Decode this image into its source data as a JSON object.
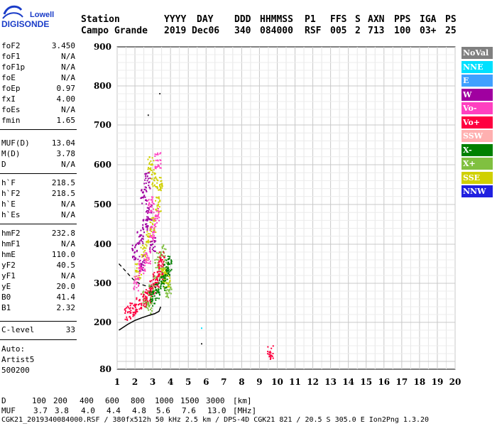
{
  "logo": {
    "line1": "Lowell",
    "line2": "DIGISONDE"
  },
  "header": {
    "row1": [
      "Station",
      "YYYY",
      "DAY",
      "DDD",
      "HHMMSS",
      "P1",
      "FFS",
      "S",
      "AXN",
      "PPS",
      "IGA",
      "PS"
    ],
    "row2": [
      "Campo Grande",
      "2019",
      "Dec06",
      "340",
      "084000",
      "RSF",
      "005",
      "2",
      "713",
      "100",
      "03+",
      "25"
    ]
  },
  "params": [
    {
      "label": "foF2",
      "value": "3.450"
    },
    {
      "label": "foF1",
      "value": "N/A"
    },
    {
      "label": "foF1p",
      "value": "N/A"
    },
    {
      "label": "foE",
      "value": "N/A"
    },
    {
      "label": "foEp",
      "value": "0.97"
    },
    {
      "label": "fxI",
      "value": "4.00"
    },
    {
      "label": "foEs",
      "value": "N/A"
    },
    {
      "label": "fmin",
      "value": "1.65"
    },
    {
      "label": "MUF(D)",
      "value": "13.04"
    },
    {
      "label": "M(D)",
      "value": "3.78"
    },
    {
      "label": "D",
      "value": "N/A"
    },
    {
      "label": "h`F",
      "value": "218.5"
    },
    {
      "label": "h`F2",
      "value": "218.5"
    },
    {
      "label": "h`E",
      "value": "N/A"
    },
    {
      "label": "h`Es",
      "value": "N/A"
    },
    {
      "label": "hmF2",
      "value": "232.8"
    },
    {
      "label": "hmF1",
      "value": "N/A"
    },
    {
      "label": "hmE",
      "value": "110.0"
    },
    {
      "label": "yF2",
      "value": "40.5"
    },
    {
      "label": "yF1",
      "value": "N/A"
    },
    {
      "label": "yE",
      "value": "20.0"
    },
    {
      "label": "B0",
      "value": "41.4"
    },
    {
      "label": "B1",
      "value": "2.32"
    },
    {
      "label": "C-level",
      "value": "33"
    }
  ],
  "auto": {
    "line1": "Auto:",
    "line2": "Artist5",
    "line3": "500200"
  },
  "legend": [
    {
      "label": "NoVal",
      "bg": "#808080",
      "fg": "#ffffff"
    },
    {
      "label": "NNE",
      "bg": "#00e0ff",
      "fg": "#ffffff"
    },
    {
      "label": "E",
      "bg": "#40a0ff",
      "fg": "#ffffff"
    },
    {
      "label": "W",
      "bg": "#a000a0",
      "fg": "#ffffff"
    },
    {
      "label": "Vo-",
      "bg": "#ff40c0",
      "fg": "#ffffff"
    },
    {
      "label": "Vo+",
      "bg": "#ff0040",
      "fg": "#ffffff"
    },
    {
      "label": "SSW",
      "bg": "#ffb0b0",
      "fg": "#ffffff"
    },
    {
      "label": "X-",
      "bg": "#008000",
      "fg": "#ffffff"
    },
    {
      "label": "X+",
      "bg": "#80c040",
      "fg": "#ffffff"
    },
    {
      "label": "SSE",
      "bg": "#d0d000",
      "fg": "#ffffff"
    },
    {
      "label": "NNW",
      "bg": "#2020e0",
      "fg": "#ffffff"
    }
  ],
  "footer": {
    "d_label": "D",
    "d_values": [
      "100",
      "200",
      "400",
      "600",
      "800",
      "1000",
      "1500",
      "3000"
    ],
    "d_unit": "[km]",
    "muf_label": "MUF",
    "muf_values": [
      "3.7",
      "3.8",
      "4.0",
      "4.4",
      "4.8",
      "5.6",
      "7.6",
      "13.0"
    ],
    "muf_unit": "[MHz]",
    "info": "CGK21_2019340084000.RSF / 380fx512h 50 kHz 2.5 km / DPS-4D CGK21 821 / 20.5 S 305.0 E Ion2Png 1.3.20"
  },
  "chart_data": {
    "type": "scatter",
    "xlim": [
      1,
      20
    ],
    "ylim": [
      80,
      900
    ],
    "x_ticks": [
      1,
      2,
      3,
      4,
      5,
      6,
      7,
      8,
      9,
      10,
      11,
      12,
      13,
      14,
      15,
      16,
      17,
      18,
      19,
      20
    ],
    "y_ticks": [
      80,
      200,
      300,
      400,
      500,
      600,
      700,
      800,
      900
    ],
    "grid": true,
    "series": [
      {
        "name": "X+",
        "color": "#80c040",
        "points": [
          [
            2.6,
            260
          ],
          [
            2.9,
            280
          ],
          [
            3.2,
            300
          ],
          [
            3.5,
            320
          ],
          [
            3.7,
            340
          ],
          [
            3.8,
            300
          ],
          [
            3.9,
            280
          ],
          [
            3.3,
            360
          ],
          [
            3.6,
            380
          ],
          [
            2.8,
            240
          ]
        ]
      },
      {
        "name": "SSE",
        "color": "#d0d000",
        "points": [
          [
            2.2,
            330
          ],
          [
            2.5,
            380
          ],
          [
            2.8,
            420
          ],
          [
            3.0,
            450
          ],
          [
            3.3,
            500
          ],
          [
            3.4,
            550
          ],
          [
            2.9,
            600
          ],
          [
            3.1,
            560
          ],
          [
            3.6,
            320
          ],
          [
            3.8,
            310
          ]
        ]
      },
      {
        "name": "Vo+",
        "color": "#ff0040",
        "points": [
          [
            1.6,
            225
          ],
          [
            1.9,
            235
          ],
          [
            2.2,
            245
          ],
          [
            2.5,
            260
          ],
          [
            2.8,
            270
          ],
          [
            3.0,
            290
          ],
          [
            3.2,
            310
          ],
          [
            3.4,
            330
          ],
          [
            3.5,
            360
          ],
          [
            9.6,
            122
          ]
        ]
      },
      {
        "name": "W",
        "color": "#a000a0",
        "points": [
          [
            2.0,
            380
          ],
          [
            2.3,
            420
          ],
          [
            2.6,
            450
          ],
          [
            2.8,
            480
          ],
          [
            2.5,
            520
          ],
          [
            2.7,
            560
          ],
          [
            3.0,
            400
          ],
          [
            2.4,
            350
          ]
        ]
      },
      {
        "name": "Vo-",
        "color": "#ff40c0",
        "points": [
          [
            2.1,
            300
          ],
          [
            2.4,
            340
          ],
          [
            2.7,
            370
          ],
          [
            3.0,
            430
          ],
          [
            3.2,
            470
          ],
          [
            3.3,
            610
          ],
          [
            2.9,
            500
          ]
        ]
      },
      {
        "name": "X-",
        "color": "#008000",
        "points": [
          [
            3.0,
            260
          ],
          [
            3.3,
            280
          ],
          [
            3.6,
            300
          ],
          [
            3.8,
            330
          ],
          [
            3.9,
            350
          ]
        ]
      },
      {
        "name": "NNE",
        "color": "#00e0ff",
        "points": [
          [
            5.75,
            185
          ]
        ]
      },
      {
        "name": "NoVal",
        "color": "#303030",
        "points": [
          [
            2.75,
            725
          ],
          [
            5.75,
            145
          ],
          [
            3.4,
            780
          ]
        ]
      }
    ],
    "profile_curve": [
      [
        1.1,
        180
      ],
      [
        1.6,
        195
      ],
      [
        2.0,
        205
      ],
      [
        2.4,
        212
      ],
      [
        2.8,
        218
      ],
      [
        3.1,
        222
      ],
      [
        3.35,
        228
      ],
      [
        3.45,
        240
      ]
    ],
    "dashed_curve": [
      [
        1.1,
        350
      ],
      [
        1.5,
        330
      ],
      [
        1.9,
        310
      ],
      [
        2.3,
        298
      ],
      [
        2.7,
        292
      ],
      [
        3.0,
        292
      ],
      [
        3.3,
        300
      ],
      [
        3.5,
        320
      ],
      [
        3.6,
        340
      ]
    ]
  }
}
